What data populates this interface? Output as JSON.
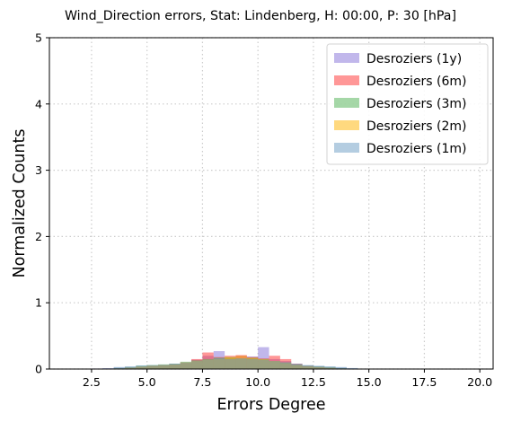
{
  "chart_data": {
    "type": "bar",
    "title": "Wind_Direction errors, Stat: Lindenberg, H: 00:00, P: 30 [hPa]",
    "xlabel": "Errors Degree",
    "ylabel": "Normalized Counts",
    "xlim": [
      0.6,
      20.6
    ],
    "ylim": [
      0,
      5
    ],
    "xticks": [
      2.5,
      5.0,
      7.5,
      10.0,
      12.5,
      15.0,
      17.5,
      20.0
    ],
    "xtick_labels": [
      "2.5",
      "5.0",
      "7.5",
      "10.0",
      "12.5",
      "15.0",
      "17.5",
      "20.0"
    ],
    "yticks": [
      0,
      1,
      2,
      3,
      4,
      5
    ],
    "ytick_labels": [
      "0",
      "1",
      "2",
      "3",
      "4",
      "5"
    ],
    "grid": true,
    "legend_position": "top-right",
    "opacity": 0.5,
    "series": [
      {
        "name": "Desroziers (1y)",
        "color": "#8470d8",
        "bins": [
          [
            2.0,
            2.5,
            0.005
          ],
          [
            2.5,
            3.0,
            0.008
          ],
          [
            3.0,
            3.5,
            0.012
          ],
          [
            3.5,
            4.0,
            0.02
          ],
          [
            4.0,
            4.5,
            0.03
          ],
          [
            4.5,
            5.0,
            0.045
          ],
          [
            5.0,
            5.5,
            0.05
          ],
          [
            5.5,
            6.0,
            0.06
          ],
          [
            6.0,
            6.5,
            0.08
          ],
          [
            6.5,
            7.0,
            0.09
          ],
          [
            7.0,
            7.5,
            0.14
          ],
          [
            7.5,
            8.0,
            0.2
          ],
          [
            8.0,
            8.5,
            0.27
          ],
          [
            8.5,
            9.0,
            0.17
          ],
          [
            9.0,
            9.5,
            0.2
          ],
          [
            9.5,
            10.0,
            0.19
          ],
          [
            10.0,
            10.5,
            0.33
          ],
          [
            10.5,
            11.0,
            0.15
          ],
          [
            11.0,
            11.5,
            0.12
          ],
          [
            11.5,
            12.0,
            0.08
          ],
          [
            12.0,
            12.5,
            0.05
          ],
          [
            12.5,
            13.0,
            0.04
          ],
          [
            13.0,
            13.5,
            0.03
          ],
          [
            13.5,
            14.0,
            0.02
          ],
          [
            14.0,
            14.5,
            0.01
          ],
          [
            14.5,
            15.0,
            0.005
          ]
        ]
      },
      {
        "name": "Desroziers (6m)",
        "color": "#ff3030",
        "bins": [
          [
            3.5,
            4.0,
            0.01
          ],
          [
            4.0,
            4.5,
            0.02
          ],
          [
            4.5,
            5.0,
            0.03
          ],
          [
            5.0,
            5.5,
            0.05
          ],
          [
            5.5,
            6.0,
            0.06
          ],
          [
            6.0,
            6.5,
            0.07
          ],
          [
            6.5,
            7.0,
            0.1
          ],
          [
            7.0,
            7.5,
            0.15
          ],
          [
            7.5,
            8.0,
            0.25
          ],
          [
            8.0,
            8.5,
            0.18
          ],
          [
            8.5,
            9.0,
            0.2
          ],
          [
            9.0,
            9.5,
            0.21
          ],
          [
            9.5,
            10.0,
            0.18
          ],
          [
            10.0,
            10.5,
            0.16
          ],
          [
            10.5,
            11.0,
            0.2
          ],
          [
            11.0,
            11.5,
            0.15
          ],
          [
            11.5,
            12.0,
            0.08
          ],
          [
            12.0,
            12.5,
            0.05
          ],
          [
            12.5,
            13.0,
            0.03
          ],
          [
            13.0,
            13.5,
            0.015
          ],
          [
            13.5,
            14.0,
            0.01
          ]
        ]
      },
      {
        "name": "Desroziers (3m)",
        "color": "#4caf50",
        "bins": [
          [
            3.5,
            4.0,
            0.015
          ],
          [
            4.0,
            4.5,
            0.03
          ],
          [
            4.5,
            5.0,
            0.05
          ],
          [
            5.0,
            5.5,
            0.06
          ],
          [
            5.5,
            6.0,
            0.07
          ],
          [
            6.0,
            6.5,
            0.08
          ],
          [
            6.5,
            7.0,
            0.11
          ],
          [
            7.0,
            7.5,
            0.13
          ],
          [
            7.5,
            8.0,
            0.15
          ],
          [
            8.0,
            8.5,
            0.17
          ],
          [
            8.5,
            9.0,
            0.18
          ],
          [
            9.0,
            9.5,
            0.16
          ],
          [
            9.5,
            10.0,
            0.17
          ],
          [
            10.0,
            10.5,
            0.15
          ],
          [
            10.5,
            11.0,
            0.12
          ],
          [
            11.0,
            11.5,
            0.1
          ],
          [
            11.5,
            12.0,
            0.07
          ],
          [
            12.0,
            12.5,
            0.05
          ],
          [
            12.5,
            13.0,
            0.04
          ],
          [
            13.0,
            13.5,
            0.03
          ],
          [
            13.5,
            14.0,
            0.015
          ]
        ]
      },
      {
        "name": "Desroziers (2m)",
        "color": "#ffb300",
        "bins": [
          [
            4.0,
            4.5,
            0.02
          ],
          [
            4.5,
            5.0,
            0.04
          ],
          [
            5.0,
            5.5,
            0.05
          ],
          [
            5.5,
            6.0,
            0.06
          ],
          [
            6.0,
            6.5,
            0.07
          ],
          [
            6.5,
            7.0,
            0.1
          ],
          [
            7.0,
            7.5,
            0.12
          ],
          [
            7.5,
            8.0,
            0.14
          ],
          [
            8.0,
            8.5,
            0.15
          ],
          [
            8.5,
            9.0,
            0.18
          ],
          [
            9.0,
            9.5,
            0.2
          ],
          [
            9.5,
            10.0,
            0.17
          ],
          [
            10.0,
            10.5,
            0.15
          ],
          [
            10.5,
            11.0,
            0.12
          ],
          [
            11.0,
            11.5,
            0.09
          ],
          [
            11.5,
            12.0,
            0.06
          ],
          [
            12.0,
            12.5,
            0.04
          ],
          [
            12.5,
            13.0,
            0.03
          ],
          [
            13.0,
            13.5,
            0.02
          ]
        ]
      },
      {
        "name": "Desroziers (1m)",
        "color": "#6a9bc3",
        "bins": [
          [
            3.0,
            3.5,
            0.01
          ],
          [
            3.5,
            4.0,
            0.03
          ],
          [
            4.0,
            4.5,
            0.04
          ],
          [
            4.5,
            5.0,
            0.055
          ],
          [
            5.0,
            5.5,
            0.06
          ],
          [
            5.5,
            6.0,
            0.065
          ],
          [
            6.0,
            6.5,
            0.08
          ],
          [
            6.5,
            7.0,
            0.1
          ],
          [
            7.0,
            7.5,
            0.12
          ],
          [
            7.5,
            8.0,
            0.14
          ],
          [
            8.0,
            8.5,
            0.16
          ],
          [
            8.5,
            9.0,
            0.15
          ],
          [
            9.0,
            9.5,
            0.16
          ],
          [
            9.5,
            10.0,
            0.15
          ],
          [
            10.0,
            10.5,
            0.14
          ],
          [
            10.5,
            11.0,
            0.12
          ],
          [
            11.0,
            11.5,
            0.1
          ],
          [
            11.5,
            12.0,
            0.08
          ],
          [
            12.0,
            12.5,
            0.06
          ],
          [
            12.5,
            13.0,
            0.05
          ],
          [
            13.0,
            13.5,
            0.04
          ],
          [
            13.5,
            14.0,
            0.03
          ],
          [
            14.0,
            14.5,
            0.015
          ]
        ]
      }
    ]
  }
}
